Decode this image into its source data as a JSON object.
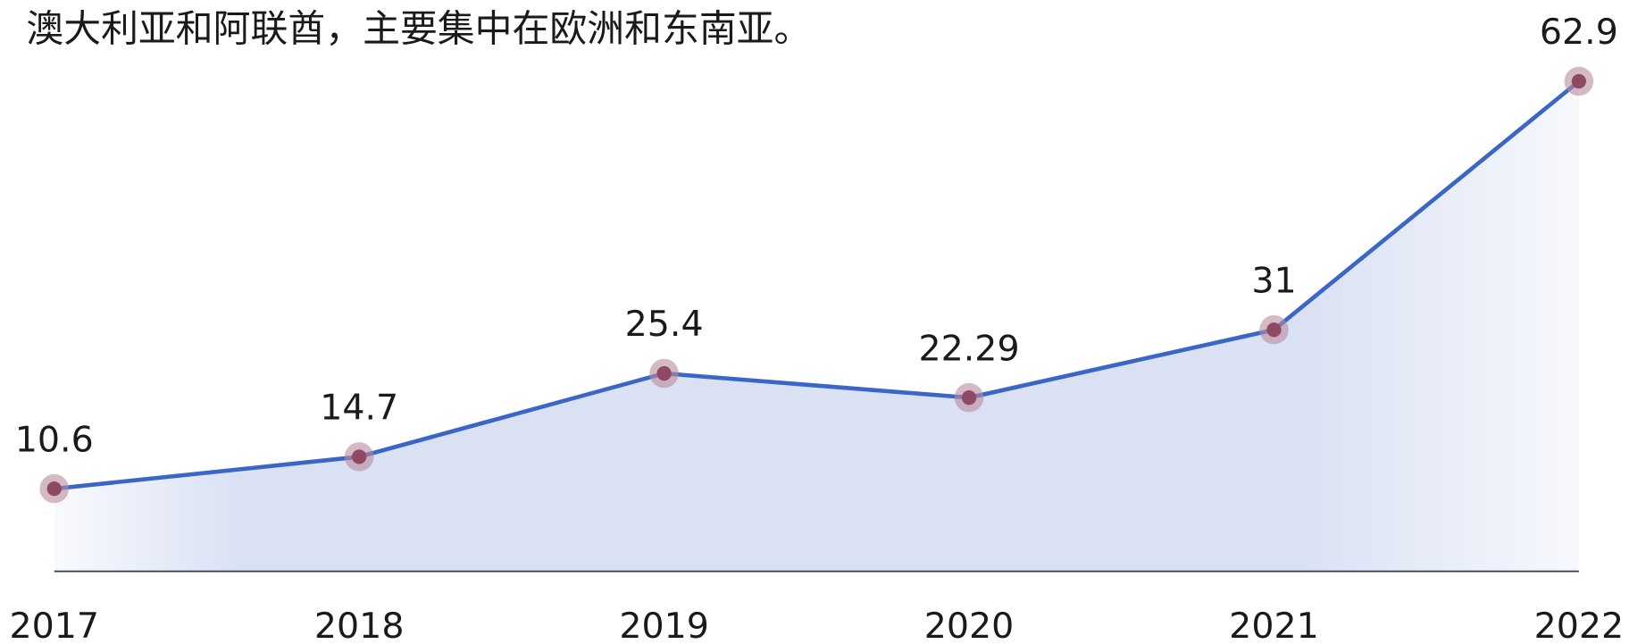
{
  "chart_data": {
    "type": "line",
    "title": "澳大利亚和阿联酋，主要集中在欧洲和东南亚。",
    "categories": [
      "2017",
      "2018",
      "2019",
      "2020",
      "2021",
      "2022"
    ],
    "series": [
      {
        "color": "#3a66c8",
        "values": [
          10.6,
          14.7,
          25.4,
          22.29,
          31,
          62.9
        ]
      }
    ],
    "ylim": [
      0,
      70
    ]
  }
}
